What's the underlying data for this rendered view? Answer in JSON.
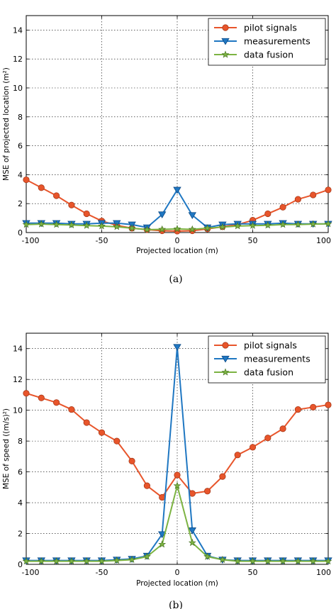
{
  "colors": {
    "pilot": "#e8552b",
    "pilot_edge": "#a83a1a",
    "measure": "#1f77c2",
    "measure_edge": "#0d4a85",
    "fusion": "#7cb342",
    "fusion_edge": "#3e6b1a"
  },
  "chart_data": [
    {
      "type": "line",
      "caption": "(a)",
      "xlabel": "Projected location (m)",
      "ylabel": "MSE of projected location (m²)",
      "xlim": [
        -100,
        100
      ],
      "ylim": [
        0,
        15
      ],
      "xticks": [
        -100,
        -50,
        0,
        50,
        100
      ],
      "yticks": [
        0,
        2,
        4,
        6,
        8,
        10,
        12,
        14
      ],
      "grid": true,
      "legend_position": "top-right",
      "x": [
        -100,
        -90,
        -80,
        -70,
        -60,
        -50,
        -40,
        -30,
        -20,
        -10,
        0,
        10,
        20,
        30,
        40,
        50,
        60,
        70,
        80,
        90,
        100
      ],
      "series": [
        {
          "name": "pilot signals",
          "marker": "circle",
          "color_key": "pilot",
          "values": [
            3.65,
            3.1,
            2.55,
            1.9,
            1.3,
            0.8,
            0.5,
            0.3,
            0.2,
            0.12,
            0.1,
            0.12,
            0.25,
            0.4,
            0.55,
            0.85,
            1.3,
            1.75,
            2.3,
            2.6,
            2.95
          ]
        },
        {
          "name": "measurements",
          "marker": "triangle-down",
          "color_key": "measure",
          "values": [
            0.65,
            0.65,
            0.65,
            0.6,
            0.6,
            0.65,
            0.65,
            0.55,
            0.35,
            1.25,
            2.95,
            1.2,
            0.35,
            0.55,
            0.6,
            0.6,
            0.6,
            0.65,
            0.6,
            0.6,
            0.6
          ]
        },
        {
          "name": "data fusion",
          "marker": "star",
          "color_key": "fusion",
          "values": [
            0.55,
            0.58,
            0.55,
            0.52,
            0.48,
            0.45,
            0.4,
            0.3,
            0.2,
            0.22,
            0.25,
            0.22,
            0.3,
            0.38,
            0.45,
            0.48,
            0.5,
            0.55,
            0.55,
            0.58,
            0.6
          ]
        }
      ]
    },
    {
      "type": "line",
      "caption": "(b)",
      "xlabel": "Projected location (m)",
      "ylabel": "MSE of speed ((m/s)²)",
      "xlim": [
        -100,
        100
      ],
      "ylim": [
        0,
        15
      ],
      "xticks": [
        -100,
        -50,
        0,
        50,
        100
      ],
      "yticks": [
        0,
        2,
        4,
        6,
        8,
        10,
        12,
        14
      ],
      "grid": true,
      "legend_position": "top-right",
      "x": [
        -100,
        -90,
        -80,
        -70,
        -60,
        -50,
        -40,
        -30,
        -20,
        -10,
        0,
        10,
        20,
        30,
        40,
        50,
        60,
        70,
        80,
        90,
        100
      ],
      "series": [
        {
          "name": "pilot signals",
          "marker": "circle",
          "color_key": "pilot",
          "values": [
            11.1,
            10.8,
            10.5,
            10.05,
            9.2,
            8.55,
            8.0,
            6.7,
            5.1,
            4.35,
            5.8,
            4.6,
            4.75,
            5.7,
            7.1,
            7.6,
            8.2,
            8.8,
            10.05,
            10.2,
            10.35
          ]
        },
        {
          "name": "measurements",
          "marker": "triangle-down",
          "color_key": "measure",
          "values": [
            0.25,
            0.25,
            0.25,
            0.25,
            0.25,
            0.25,
            0.3,
            0.35,
            0.55,
            1.95,
            14.1,
            2.2,
            0.55,
            0.3,
            0.25,
            0.25,
            0.25,
            0.25,
            0.25,
            0.25,
            0.25
          ]
        },
        {
          "name": "data fusion",
          "marker": "star",
          "color_key": "fusion",
          "values": [
            0.2,
            0.2,
            0.2,
            0.2,
            0.2,
            0.2,
            0.25,
            0.3,
            0.5,
            1.3,
            5.1,
            1.4,
            0.5,
            0.3,
            0.2,
            0.2,
            0.2,
            0.2,
            0.2,
            0.2,
            0.2
          ]
        }
      ]
    }
  ]
}
